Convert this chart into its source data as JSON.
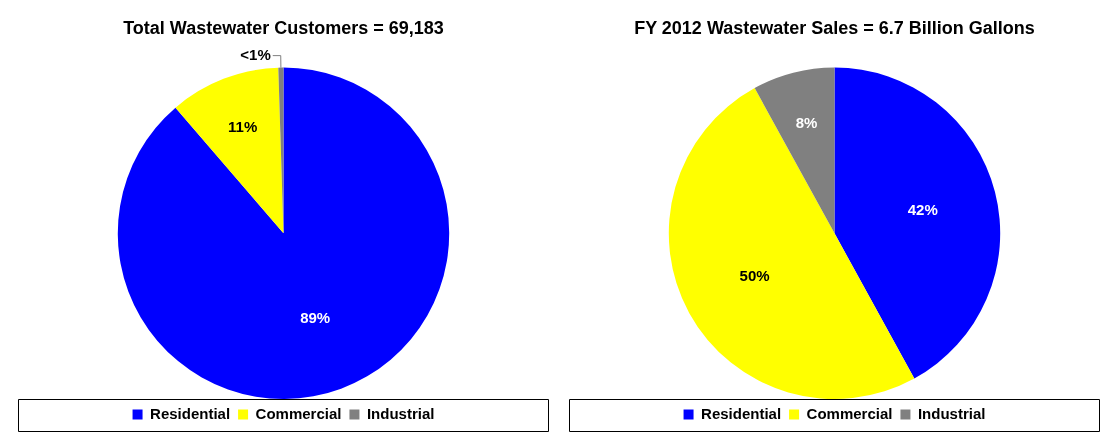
{
  "chart_data": [
    {
      "type": "pie",
      "title": "Total Wastewater Customers = 69,183",
      "categories": [
        "Residential",
        "Commercial",
        "Industrial"
      ],
      "values": [
        88.7,
        10.8,
        0.5
      ],
      "value_labels": [
        "89%",
        "11%",
        "<1%"
      ],
      "colors": [
        "#0000ff",
        "#ffff00",
        "#808080"
      ],
      "legend": "bottom"
    },
    {
      "type": "pie",
      "title": "FY 2012 Wastewater Sales = 6.7 Billion Gallons",
      "categories": [
        "Residential",
        "Commercial",
        "Industrial"
      ],
      "values": [
        42,
        50,
        8
      ],
      "value_labels": [
        "42%",
        "50%",
        "8%"
      ],
      "colors": [
        "#0000ff",
        "#ffff00",
        "#808080"
      ],
      "legend": "bottom"
    }
  ]
}
